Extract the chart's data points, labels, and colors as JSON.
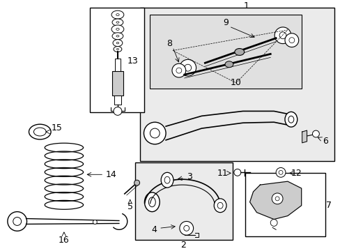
{
  "background_color": "#ffffff",
  "line_color": "#000000",
  "fig_width": 4.89,
  "fig_height": 3.6,
  "dpi": 100,
  "font_size": 9.0,
  "gray_fill": "#d8d8d8"
}
